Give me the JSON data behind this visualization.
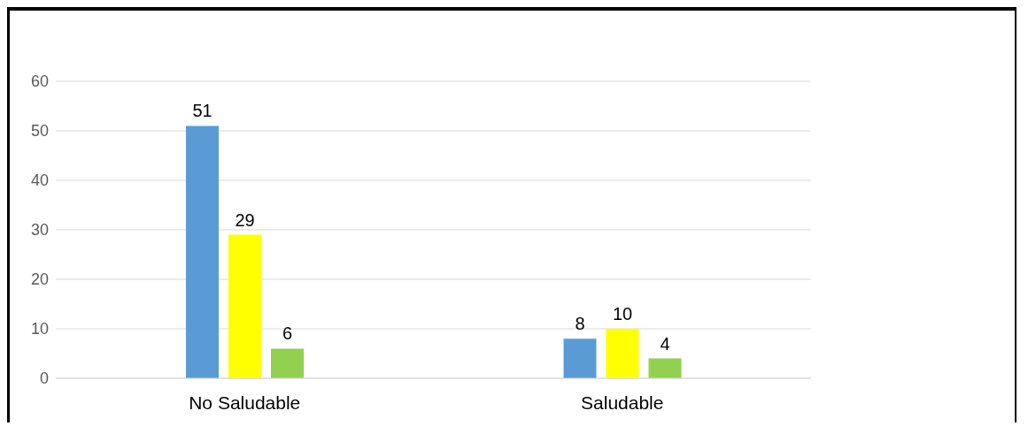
{
  "chart_data": {
    "type": "bar",
    "categories": [
      "No Saludable",
      "Saludable"
    ],
    "series": [
      {
        "color": "#5b9bd5",
        "values": [
          51,
          8
        ]
      },
      {
        "color": "#ffff00",
        "values": [
          29,
          10
        ]
      },
      {
        "color": "#92d050",
        "values": [
          6,
          4
        ]
      }
    ],
    "ylim": [
      0,
      60
    ],
    "yticks": [
      0,
      10,
      20,
      30,
      40,
      50,
      60
    ],
    "grid": "y",
    "data_labels": true
  }
}
